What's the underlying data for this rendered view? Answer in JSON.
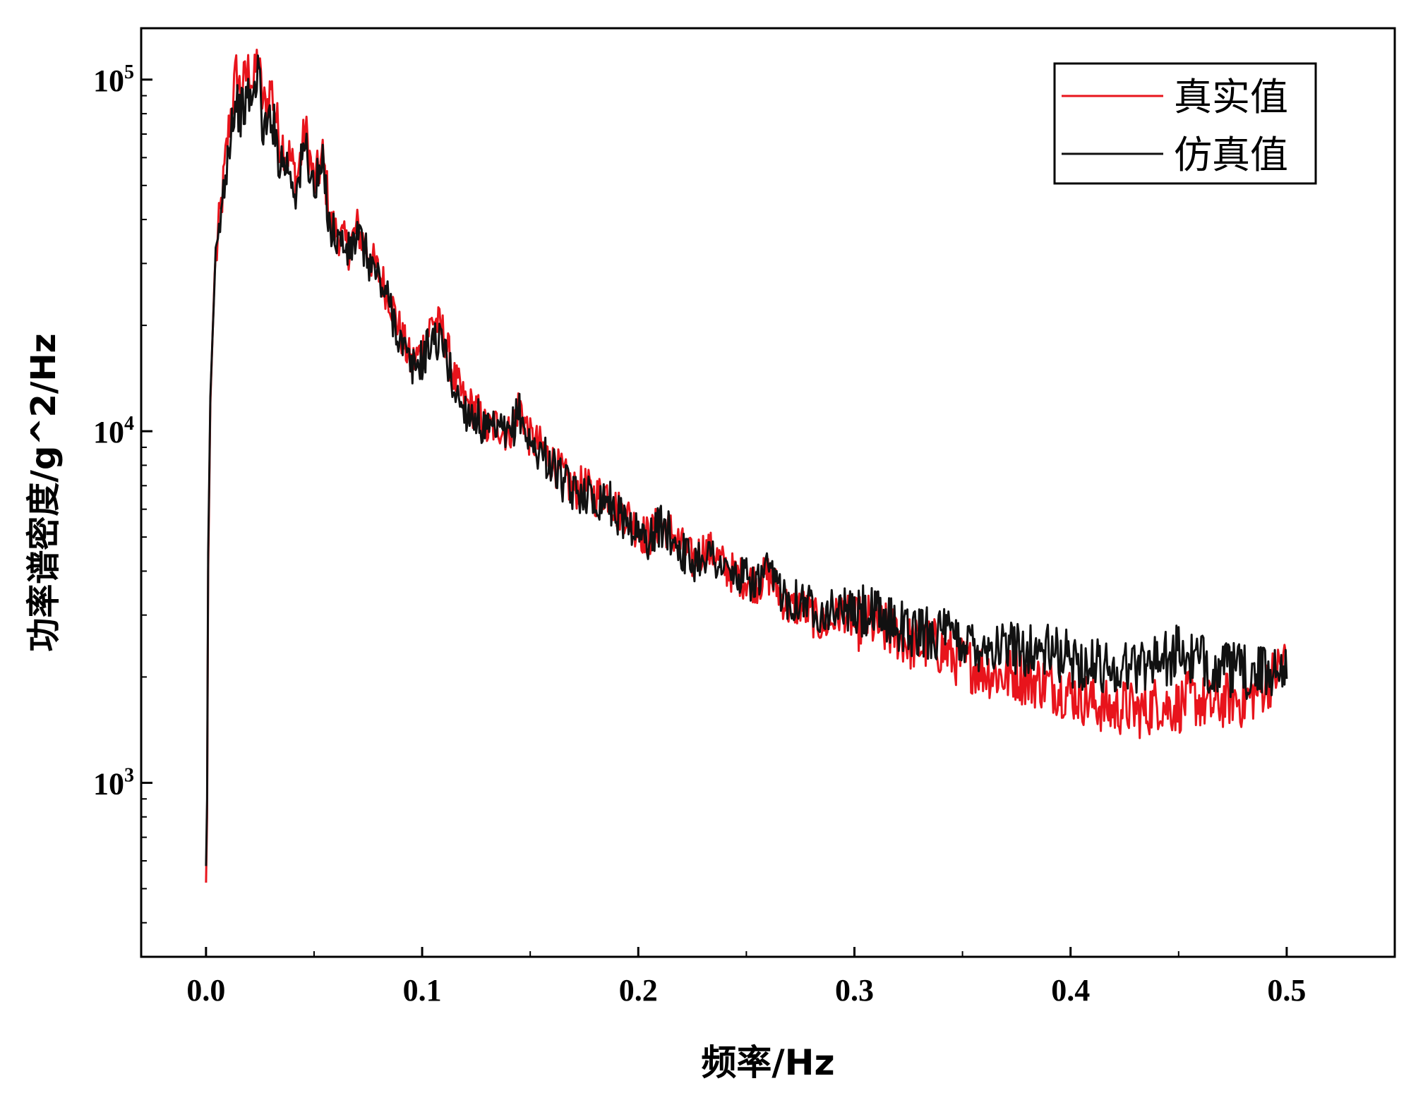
{
  "chart_data": {
    "type": "line",
    "title": "",
    "xlabel": "频率/Hz",
    "ylabel": "功率谱密度/g^2/Hz",
    "xlim": [
      -0.03,
      0.55
    ],
    "ylim": [
      320,
      140000
    ],
    "yscale": "log",
    "x_ticks": [
      0.0,
      0.1,
      0.2,
      0.3,
      0.4,
      0.5
    ],
    "x_tick_labels": [
      "0.0",
      "0.1",
      "0.2",
      "0.3",
      "0.4",
      "0.5"
    ],
    "y_ticks": [
      {
        "value": 1000,
        "base": "10",
        "exp": "3"
      },
      {
        "value": 10000,
        "base": "10",
        "exp": "4"
      },
      {
        "value": 100000,
        "base": "10",
        "exp": "5"
      }
    ],
    "grid": false,
    "legend_position": "top-right",
    "series": [
      {
        "name": "真实值",
        "color": "#e8141c",
        "anchors": [
          [
            0.0,
            520
          ],
          [
            0.0005,
            800
          ],
          [
            0.001,
            4000
          ],
          [
            0.002,
            12000
          ],
          [
            0.004,
            28000
          ],
          [
            0.006,
            38000
          ],
          [
            0.008,
            50000
          ],
          [
            0.01,
            68000
          ],
          [
            0.012,
            85000
          ],
          [
            0.014,
            105000
          ],
          [
            0.016,
            92000
          ],
          [
            0.018,
            100000
          ],
          [
            0.02,
            108000
          ],
          [
            0.022,
            96000
          ],
          [
            0.024,
            118000
          ],
          [
            0.026,
            88000
          ],
          [
            0.028,
            82000
          ],
          [
            0.03,
            97000
          ],
          [
            0.034,
            68000
          ],
          [
            0.038,
            62000
          ],
          [
            0.042,
            52000
          ],
          [
            0.046,
            72000
          ],
          [
            0.05,
            50000
          ],
          [
            0.054,
            60000
          ],
          [
            0.058,
            38000
          ],
          [
            0.062,
            36000
          ],
          [
            0.066,
            33000
          ],
          [
            0.07,
            38000
          ],
          [
            0.075,
            32000
          ],
          [
            0.08,
            28000
          ],
          [
            0.085,
            24000
          ],
          [
            0.09,
            19000
          ],
          [
            0.095,
            15500
          ],
          [
            0.1,
            17000
          ],
          [
            0.105,
            21000
          ],
          [
            0.11,
            19000
          ],
          [
            0.115,
            14000
          ],
          [
            0.12,
            12000
          ],
          [
            0.125,
            11500
          ],
          [
            0.13,
            10000
          ],
          [
            0.135,
            10500
          ],
          [
            0.14,
            9800
          ],
          [
            0.145,
            12000
          ],
          [
            0.15,
            9500
          ],
          [
            0.155,
            9000
          ],
          [
            0.16,
            8200
          ],
          [
            0.165,
            7500
          ],
          [
            0.17,
            6800
          ],
          [
            0.175,
            7000
          ],
          [
            0.18,
            6500
          ],
          [
            0.185,
            6800
          ],
          [
            0.19,
            6000
          ],
          [
            0.195,
            5800
          ],
          [
            0.2,
            5200
          ],
          [
            0.205,
            5000
          ],
          [
            0.21,
            5500
          ],
          [
            0.215,
            5200
          ],
          [
            0.22,
            4700
          ],
          [
            0.225,
            4300
          ],
          [
            0.23,
            4600
          ],
          [
            0.235,
            4500
          ],
          [
            0.24,
            4100
          ],
          [
            0.245,
            3900
          ],
          [
            0.25,
            3800
          ],
          [
            0.255,
            3700
          ],
          [
            0.26,
            3900
          ],
          [
            0.265,
            3500
          ],
          [
            0.27,
            3100
          ],
          [
            0.275,
            3200
          ],
          [
            0.28,
            3000
          ],
          [
            0.285,
            2800
          ],
          [
            0.29,
            2900
          ],
          [
            0.295,
            3100
          ],
          [
            0.3,
            2800
          ],
          [
            0.305,
            2900
          ],
          [
            0.31,
            2800
          ],
          [
            0.315,
            2700
          ],
          [
            0.32,
            2650
          ],
          [
            0.325,
            2500
          ],
          [
            0.33,
            2450
          ],
          [
            0.335,
            2500
          ],
          [
            0.34,
            2400
          ],
          [
            0.345,
            2300
          ],
          [
            0.35,
            2200
          ],
          [
            0.355,
            2150
          ],
          [
            0.36,
            2100
          ],
          [
            0.365,
            2050
          ],
          [
            0.37,
            2000
          ],
          [
            0.375,
            2050
          ],
          [
            0.38,
            1950
          ],
          [
            0.385,
            1950
          ],
          [
            0.39,
            1900
          ],
          [
            0.395,
            1850
          ],
          [
            0.4,
            1800
          ],
          [
            0.405,
            1750
          ],
          [
            0.41,
            1700
          ],
          [
            0.415,
            1650
          ],
          [
            0.42,
            1600
          ],
          [
            0.425,
            1650
          ],
          [
            0.43,
            1600
          ],
          [
            0.435,
            1600
          ],
          [
            0.44,
            1700
          ],
          [
            0.445,
            1650
          ],
          [
            0.45,
            1650
          ],
          [
            0.455,
            1750
          ],
          [
            0.46,
            1700
          ],
          [
            0.465,
            1650
          ],
          [
            0.47,
            1700
          ],
          [
            0.475,
            1750
          ],
          [
            0.48,
            1700
          ],
          [
            0.485,
            1800
          ],
          [
            0.49,
            1900
          ],
          [
            0.495,
            2050
          ],
          [
            0.5,
            2300
          ]
        ]
      },
      {
        "name": "仿真值",
        "color": "#111111",
        "anchors": [
          [
            0.0,
            580
          ],
          [
            0.0005,
            900
          ],
          [
            0.001,
            4500
          ],
          [
            0.002,
            12500
          ],
          [
            0.004,
            27000
          ],
          [
            0.006,
            36000
          ],
          [
            0.008,
            48000
          ],
          [
            0.01,
            62000
          ],
          [
            0.012,
            78000
          ],
          [
            0.014,
            86000
          ],
          [
            0.016,
            80000
          ],
          [
            0.018,
            84000
          ],
          [
            0.02,
            90000
          ],
          [
            0.022,
            86000
          ],
          [
            0.024,
            115000
          ],
          [
            0.026,
            75000
          ],
          [
            0.028,
            70000
          ],
          [
            0.03,
            82000
          ],
          [
            0.034,
            60000
          ],
          [
            0.038,
            57000
          ],
          [
            0.042,
            48000
          ],
          [
            0.046,
            66000
          ],
          [
            0.05,
            48000
          ],
          [
            0.054,
            56000
          ],
          [
            0.058,
            37000
          ],
          [
            0.062,
            35000
          ],
          [
            0.066,
            32000
          ],
          [
            0.07,
            36000
          ],
          [
            0.075,
            31000
          ],
          [
            0.08,
            27000
          ],
          [
            0.085,
            23000
          ],
          [
            0.09,
            18000
          ],
          [
            0.095,
            15000
          ],
          [
            0.1,
            16000
          ],
          [
            0.105,
            18500
          ],
          [
            0.11,
            17500
          ],
          [
            0.115,
            13000
          ],
          [
            0.12,
            11500
          ],
          [
            0.125,
            11000
          ],
          [
            0.13,
            9800
          ],
          [
            0.135,
            10000
          ],
          [
            0.14,
            9500
          ],
          [
            0.145,
            11500
          ],
          [
            0.15,
            9000
          ],
          [
            0.155,
            8800
          ],
          [
            0.16,
            8000
          ],
          [
            0.165,
            7200
          ],
          [
            0.17,
            6600
          ],
          [
            0.175,
            6800
          ],
          [
            0.18,
            6300
          ],
          [
            0.185,
            6600
          ],
          [
            0.19,
            5800
          ],
          [
            0.195,
            5600
          ],
          [
            0.2,
            5100
          ],
          [
            0.205,
            4900
          ],
          [
            0.21,
            5400
          ],
          [
            0.215,
            5100
          ],
          [
            0.22,
            4600
          ],
          [
            0.225,
            4200
          ],
          [
            0.23,
            4500
          ],
          [
            0.235,
            4400
          ],
          [
            0.24,
            4000
          ],
          [
            0.245,
            3850
          ],
          [
            0.25,
            3800
          ],
          [
            0.255,
            3700
          ],
          [
            0.26,
            3950
          ],
          [
            0.265,
            3600
          ],
          [
            0.27,
            3300
          ],
          [
            0.275,
            3350
          ],
          [
            0.28,
            3200
          ],
          [
            0.285,
            3050
          ],
          [
            0.29,
            3100
          ],
          [
            0.295,
            3150
          ],
          [
            0.3,
            3000
          ],
          [
            0.305,
            3050
          ],
          [
            0.31,
            2950
          ],
          [
            0.315,
            2900
          ],
          [
            0.32,
            2850
          ],
          [
            0.325,
            2700
          ],
          [
            0.33,
            2650
          ],
          [
            0.335,
            2700
          ],
          [
            0.34,
            2650
          ],
          [
            0.345,
            2600
          ],
          [
            0.35,
            2550
          ],
          [
            0.355,
            2500
          ],
          [
            0.36,
            2480
          ],
          [
            0.365,
            2450
          ],
          [
            0.37,
            2400
          ],
          [
            0.375,
            2450
          ],
          [
            0.38,
            2400
          ],
          [
            0.385,
            2380
          ],
          [
            0.39,
            2350
          ],
          [
            0.395,
            2300
          ],
          [
            0.4,
            2250
          ],
          [
            0.405,
            2200
          ],
          [
            0.41,
            2150
          ],
          [
            0.415,
            2150
          ],
          [
            0.42,
            2100
          ],
          [
            0.425,
            2150
          ],
          [
            0.43,
            2150
          ],
          [
            0.435,
            2200
          ],
          [
            0.44,
            2300
          ],
          [
            0.445,
            2250
          ],
          [
            0.45,
            2350
          ],
          [
            0.455,
            2250
          ],
          [
            0.46,
            2200
          ],
          [
            0.465,
            2150
          ],
          [
            0.47,
            2100
          ],
          [
            0.475,
            2100
          ],
          [
            0.48,
            2050
          ],
          [
            0.485,
            2050
          ],
          [
            0.49,
            2050
          ],
          [
            0.495,
            2100
          ],
          [
            0.5,
            2250
          ]
        ]
      }
    ]
  }
}
